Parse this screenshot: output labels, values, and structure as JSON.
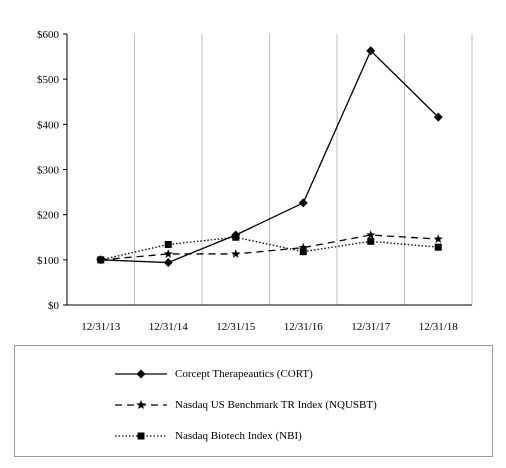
{
  "chart_data": {
    "type": "line",
    "categories": [
      "12/31/13",
      "12/31/14",
      "12/31/15",
      "12/31/16",
      "12/31/17",
      "12/31/18"
    ],
    "ylim": [
      0,
      600
    ],
    "yticks": [
      0,
      100,
      200,
      300,
      400,
      500,
      600
    ],
    "ytick_labels": [
      "$0",
      "$100",
      "$200",
      "$300",
      "$400",
      "$500",
      "$600"
    ],
    "grid": "vertical",
    "legend_position": "bottom",
    "series": [
      {
        "name": "Corcept Therapeautics (CORT)",
        "values": [
          100,
          94,
          155,
          226,
          563,
          416
        ],
        "color": "#000000",
        "line": "solid",
        "marker": "diamond"
      },
      {
        "name": "Nasdaq US Benchmark TR Index (NQUSBT)",
        "values": [
          100,
          113,
          113,
          127,
          155,
          146
        ],
        "color": "#000000",
        "line": "dashed",
        "marker": "star"
      },
      {
        "name": "Nasdaq Biotech Index (NBI)",
        "values": [
          100,
          134,
          150,
          118,
          141,
          128
        ],
        "color": "#000000",
        "line": "dotted",
        "marker": "square"
      }
    ]
  }
}
